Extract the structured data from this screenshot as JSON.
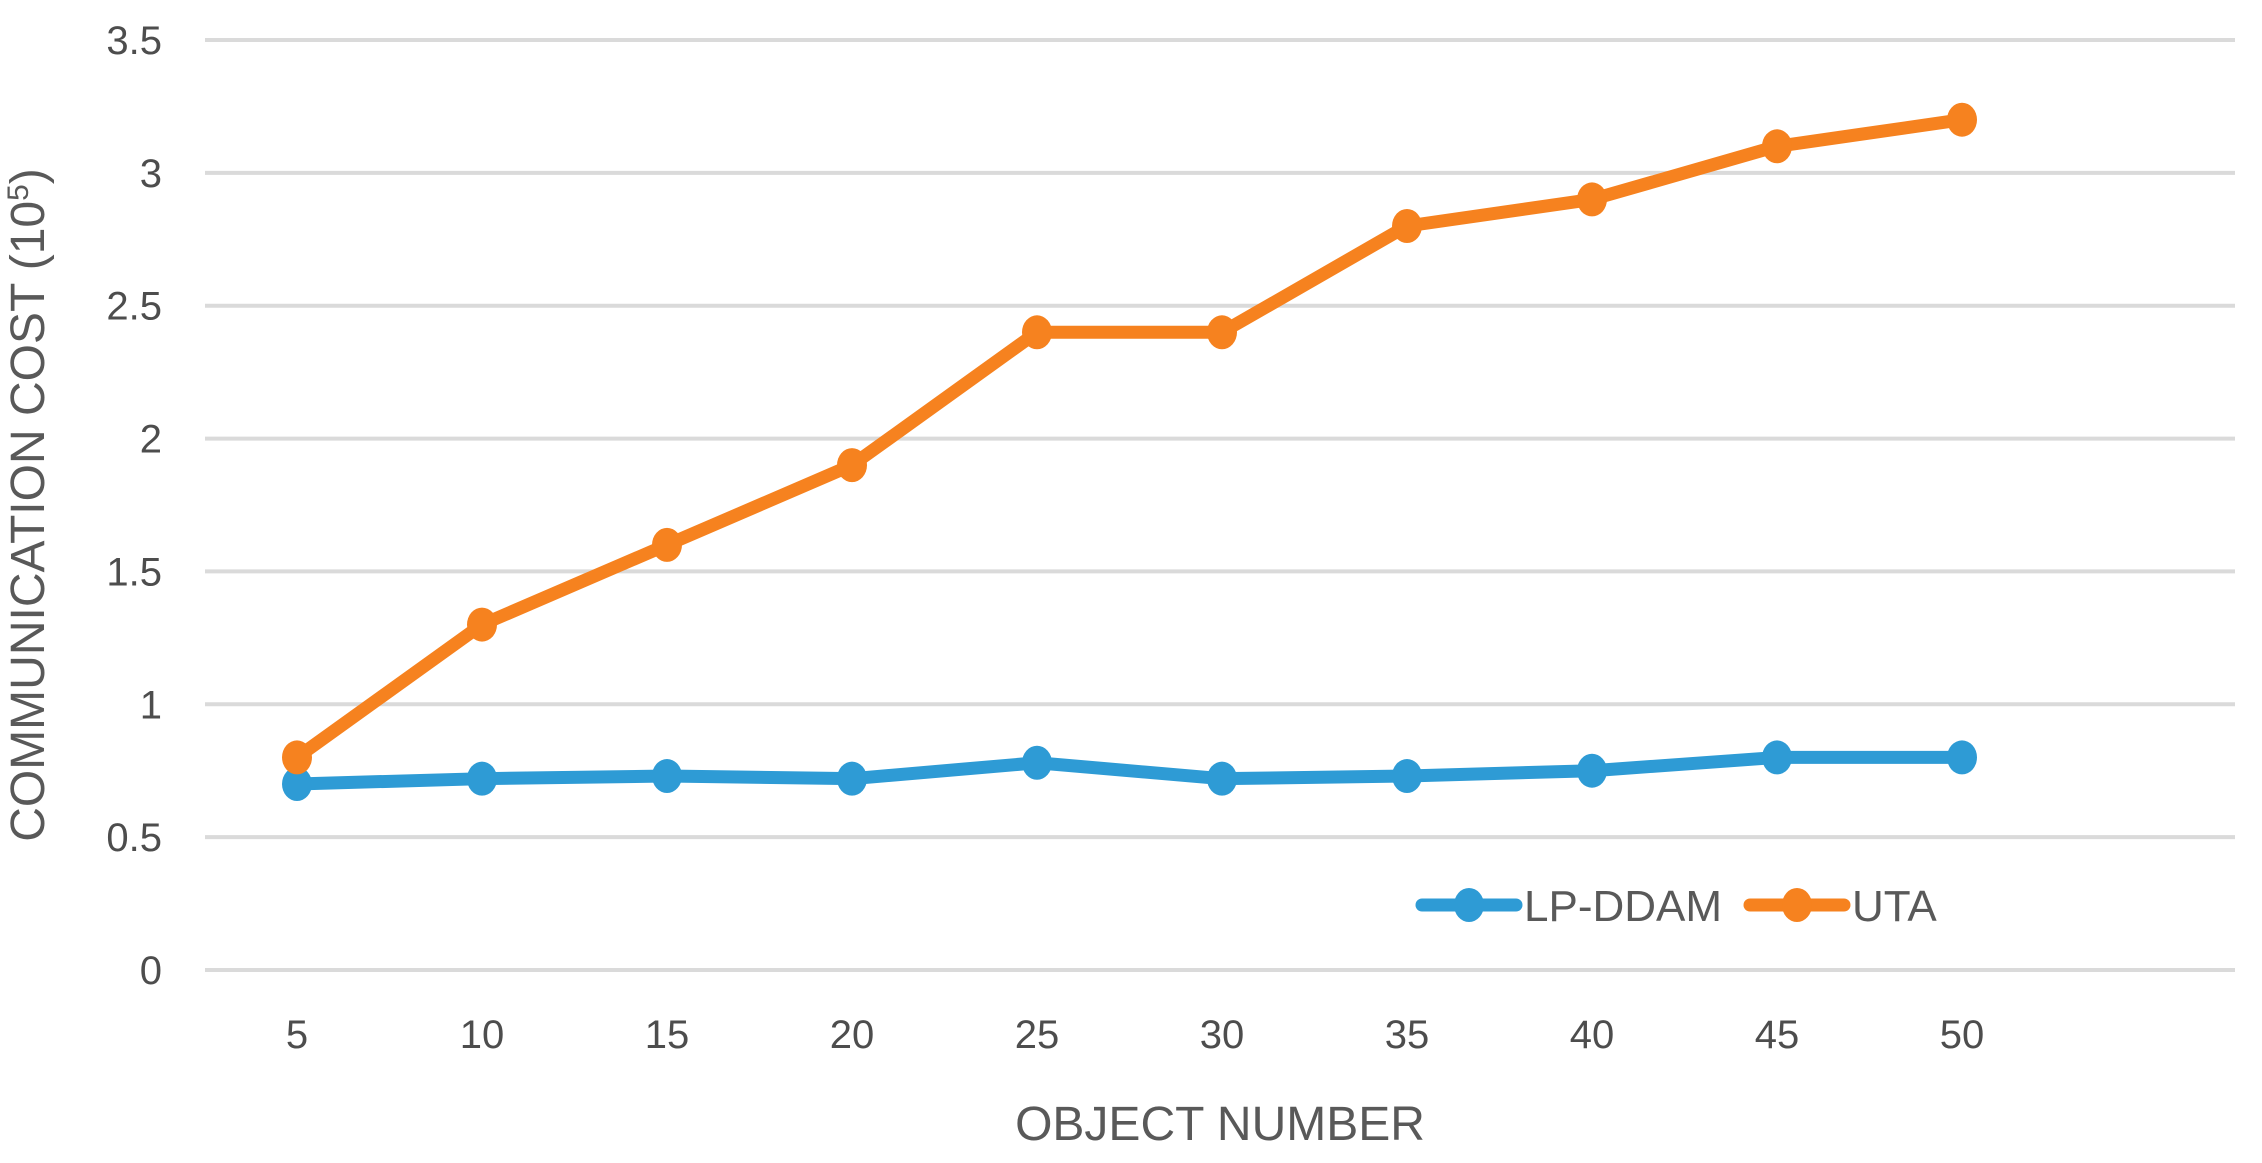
{
  "chart_data": {
    "type": "line",
    "title": "",
    "xlabel": "OBJECT NUMBER",
    "ylabel": "COMMUNICATION COST (10⁵)",
    "ylabel_parts": {
      "prefix": "COMMUNICATION COST (10",
      "sup": "5",
      "suffix": ")"
    },
    "categories": [
      5,
      10,
      15,
      20,
      25,
      30,
      35,
      40,
      45,
      50
    ],
    "series": [
      {
        "name": "LP-DDAM",
        "color": "#2E9BD5",
        "values": [
          0.7,
          0.72,
          0.73,
          0.72,
          0.78,
          0.72,
          0.73,
          0.75,
          0.8,
          0.8
        ]
      },
      {
        "name": "UTA",
        "color": "#F6821F",
        "values": [
          0.8,
          1.3,
          1.6,
          1.9,
          2.4,
          2.4,
          2.8,
          2.9,
          3.1,
          3.2
        ]
      }
    ],
    "ylim": [
      0,
      3.5
    ],
    "ytick_step": 0.5,
    "yticks": [
      "0",
      "0.5",
      "1",
      "1.5",
      "2",
      "2.5",
      "3",
      "3.5"
    ],
    "grid": true,
    "legend_position": "inside-bottom-right",
    "marker": "circle"
  },
  "style": {
    "background": "#FFFFFF",
    "grid_color": "#DADADA",
    "text_color": "#595959",
    "tick_color": "#4D4D4D"
  }
}
